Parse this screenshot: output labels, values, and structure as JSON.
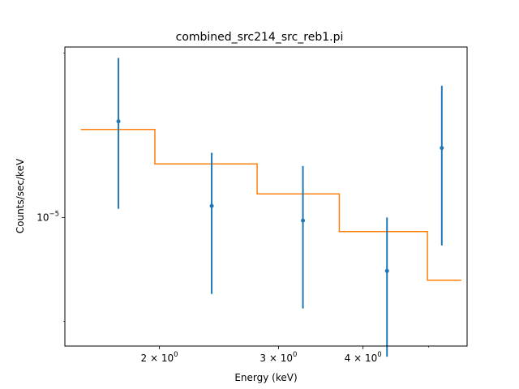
{
  "chart_data": {
    "type": "scatter",
    "title": "combined_src214_src_reb1.pi",
    "xlabel": "Energy (keV)",
    "ylabel": "Counts/sec/keV",
    "xscale": "log",
    "yscale": "log",
    "xlim": [
      1.45,
      5.7
    ],
    "ylim": [
      4.24e-06,
      3.12e-05
    ],
    "x_ticks": [
      {
        "value": 2,
        "base": "2 × 10",
        "exp": "0"
      },
      {
        "value": 3,
        "base": "3 × 10",
        "exp": "0"
      },
      {
        "value": 4,
        "base": "4 × 10",
        "exp": "0"
      }
    ],
    "x_minor_ticks": [
      5
    ],
    "y_ticks": [
      {
        "value": 1e-05,
        "base": "10",
        "exp": "−5"
      }
    ],
    "y_minor_ticks": [
      5e-06,
      3e-05
    ],
    "grid": false,
    "data_color": "#1f77b4",
    "model_color": "#ff7f0e",
    "series": [
      {
        "kind": "data",
        "points": [
          {
            "x": 1.74,
            "y": 1.9e-05,
            "ylo": 1.06e-05,
            "yhi": 2.9e-05
          },
          {
            "x": 2.39,
            "y": 1.08e-05,
            "ylo": 6e-06,
            "yhi": 1.54e-05
          },
          {
            "x": 3.26,
            "y": 9.8e-06,
            "ylo": 5.45e-06,
            "yhi": 1.41e-05
          },
          {
            "x": 4.34,
            "y": 7e-06,
            "ylo": 3.95e-06,
            "yhi": 1e-05
          },
          {
            "x": 5.23,
            "y": 1.59e-05,
            "ylo": 8.3e-06,
            "yhi": 2.41e-05
          }
        ]
      },
      {
        "kind": "model",
        "steps": [
          {
            "x0": 1.53,
            "x1": 1.97,
            "y": 1.8e-05
          },
          {
            "x0": 1.97,
            "x1": 2.79,
            "y": 1.43e-05
          },
          {
            "x0": 2.79,
            "x1": 3.69,
            "y": 1.17e-05
          },
          {
            "x0": 3.69,
            "x1": 4.98,
            "y": 9.1e-06
          },
          {
            "x0": 4.98,
            "x1": 5.59,
            "y": 6.58e-06
          }
        ]
      }
    ]
  }
}
